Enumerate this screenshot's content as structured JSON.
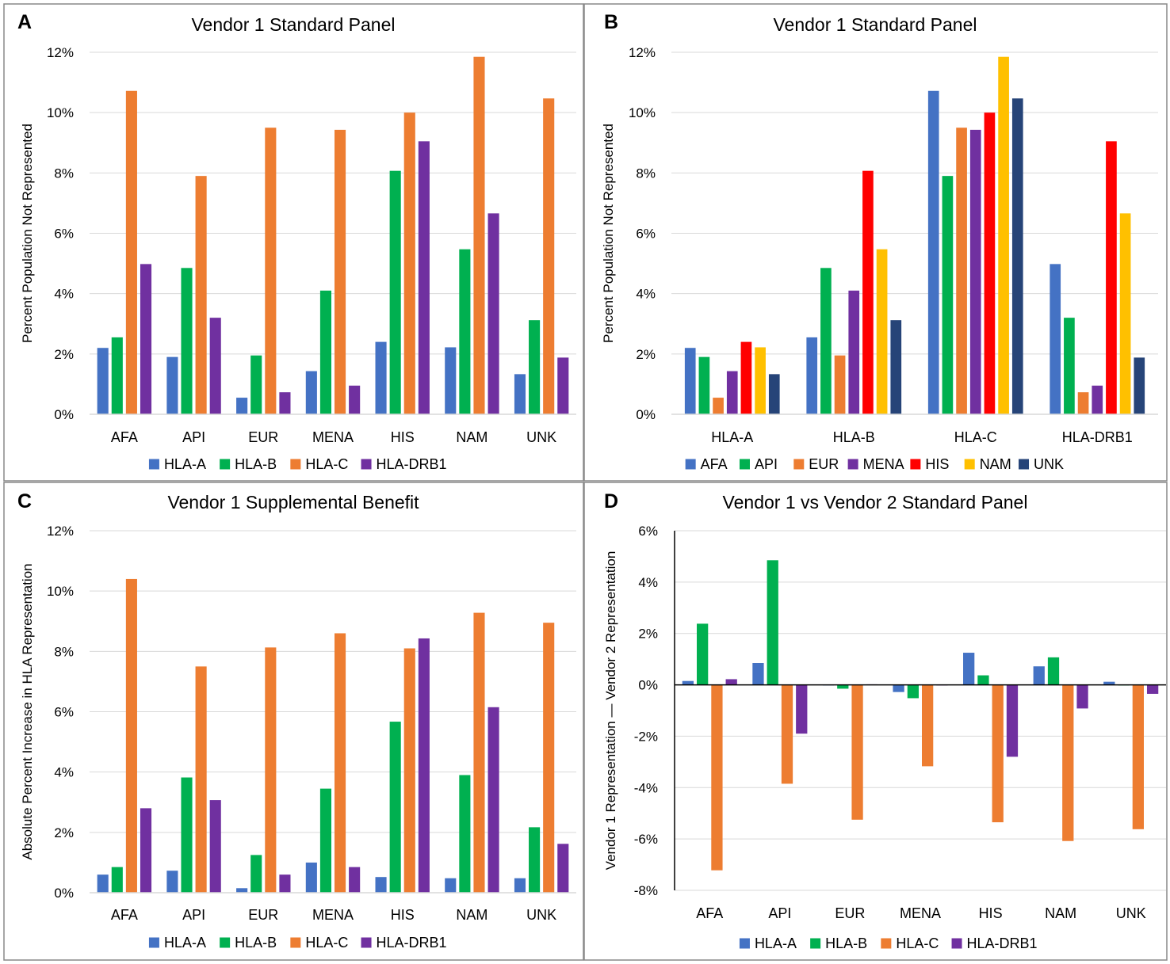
{
  "figure": {
    "colors": {
      "HLA-A": "#4472C4",
      "HLA-B": "#00B050",
      "HLA-C": "#ED7D31",
      "HLA-DRB1": "#7030A0",
      "AFA": "#4472C4",
      "API": "#00B050",
      "EUR": "#ED7D31",
      "MENA": "#7030A0",
      "HIS": "#FF0000",
      "NAM": "#FFC000",
      "UNK": "#264478",
      "grid": "#d9d9d9",
      "axis_text": "#000000",
      "border": "#888888"
    }
  },
  "chart_data": [
    {
      "panel": "A",
      "type": "bar",
      "title": "Vendor 1 Standard Panel",
      "xlabel": "",
      "ylabel": "Percent Population Not Represented",
      "ylim": [
        0,
        12
      ],
      "yticks": [
        0,
        2,
        4,
        6,
        8,
        10,
        12
      ],
      "ytick_labels": [
        "0%",
        "2%",
        "4%",
        "6%",
        "8%",
        "10%",
        "12%"
      ],
      "grid": true,
      "legend": "bottom",
      "categories": [
        "AFA",
        "API",
        "EUR",
        "MENA",
        "HIS",
        "NAM",
        "UNK"
      ],
      "series": [
        {
          "name": "HLA-A",
          "values": [
            2.2,
            1.9,
            0.55,
            1.43,
            2.4,
            2.22,
            1.33
          ]
        },
        {
          "name": "HLA-B",
          "values": [
            2.55,
            4.85,
            1.95,
            4.1,
            8.07,
            5.47,
            3.12
          ]
        },
        {
          "name": "HLA-C",
          "values": [
            10.72,
            7.9,
            9.5,
            9.43,
            10.0,
            11.85,
            10.47
          ]
        },
        {
          "name": "HLA-DRB1",
          "values": [
            4.98,
            3.2,
            0.73,
            0.95,
            9.05,
            6.66,
            1.88
          ]
        }
      ]
    },
    {
      "panel": "B",
      "type": "bar",
      "title": "Vendor 1 Standard Panel",
      "xlabel": "",
      "ylabel": "Percent Population Not Represented",
      "ylim": [
        0,
        12
      ],
      "yticks": [
        0,
        2,
        4,
        6,
        8,
        10,
        12
      ],
      "ytick_labels": [
        "0%",
        "2%",
        "4%",
        "6%",
        "8%",
        "10%",
        "12%"
      ],
      "grid": true,
      "legend": "bottom",
      "categories": [
        "HLA-A",
        "HLA-B",
        "HLA-C",
        "HLA-DRB1"
      ],
      "series": [
        {
          "name": "AFA",
          "values": [
            2.2,
            2.55,
            10.72,
            4.98
          ]
        },
        {
          "name": "API",
          "values": [
            1.9,
            4.85,
            7.9,
            3.2
          ]
        },
        {
          "name": "EUR",
          "values": [
            0.55,
            1.95,
            9.5,
            0.73
          ]
        },
        {
          "name": "MENA",
          "values": [
            1.43,
            4.1,
            9.43,
            0.95
          ]
        },
        {
          "name": "HIS",
          "values": [
            2.4,
            8.07,
            10.0,
            9.05
          ]
        },
        {
          "name": "NAM",
          "values": [
            2.22,
            5.47,
            11.85,
            6.66
          ]
        },
        {
          "name": "UNK",
          "values": [
            1.33,
            3.12,
            10.47,
            1.88
          ]
        }
      ]
    },
    {
      "panel": "C",
      "type": "bar",
      "title": "Vendor 1 Supplemental Benefit",
      "xlabel": "",
      "ylabel": "Absolute Percent Increase in HLA Representation",
      "ylim": [
        0,
        12
      ],
      "yticks": [
        0,
        2,
        4,
        6,
        8,
        10,
        12
      ],
      "ytick_labels": [
        "0%",
        "2%",
        "4%",
        "6%",
        "8%",
        "10%",
        "12%"
      ],
      "grid": true,
      "legend": "bottom",
      "categories": [
        "AFA",
        "API",
        "EUR",
        "MENA",
        "HIS",
        "NAM",
        "UNK"
      ],
      "series": [
        {
          "name": "HLA-A",
          "values": [
            0.6,
            0.73,
            0.15,
            1.0,
            0.52,
            0.48,
            0.48
          ]
        },
        {
          "name": "HLA-B",
          "values": [
            0.85,
            3.82,
            1.25,
            3.45,
            5.67,
            3.9,
            2.17
          ]
        },
        {
          "name": "HLA-C",
          "values": [
            10.4,
            7.5,
            8.13,
            8.6,
            8.1,
            9.28,
            8.95
          ]
        },
        {
          "name": "HLA-DRB1",
          "values": [
            2.8,
            3.07,
            0.6,
            0.85,
            8.43,
            6.15,
            1.62
          ]
        }
      ]
    },
    {
      "panel": "D",
      "type": "bar",
      "title": "Vendor 1 vs Vendor 2 Standard Panel",
      "xlabel": "",
      "ylabel": "Vendor 1 Representation — Vendor 2 Representation",
      "ylim": [
        -8,
        6
      ],
      "yticks": [
        -8,
        -6,
        -4,
        -2,
        0,
        2,
        4,
        6
      ],
      "ytick_labels": [
        "-8%",
        "-6%",
        "-4%",
        "-2%",
        "0%",
        "2%",
        "4%",
        "6%"
      ],
      "grid": true,
      "legend": "bottom",
      "categories": [
        "AFA",
        "API",
        "EUR",
        "MENA",
        "HIS",
        "NAM",
        "UNK"
      ],
      "series": [
        {
          "name": "HLA-A",
          "values": [
            0.15,
            0.85,
            0.0,
            -0.28,
            1.25,
            0.72,
            0.12
          ]
        },
        {
          "name": "HLA-B",
          "values": [
            2.38,
            4.85,
            -0.15,
            -0.52,
            0.37,
            1.07,
            0.0
          ]
        },
        {
          "name": "HLA-C",
          "values": [
            -7.22,
            -3.85,
            -5.25,
            -3.17,
            -5.35,
            -6.08,
            -5.62
          ]
        },
        {
          "name": "HLA-DRB1",
          "values": [
            0.22,
            -1.9,
            0.02,
            0.0,
            -2.8,
            -0.92,
            -0.35
          ]
        }
      ]
    }
  ]
}
